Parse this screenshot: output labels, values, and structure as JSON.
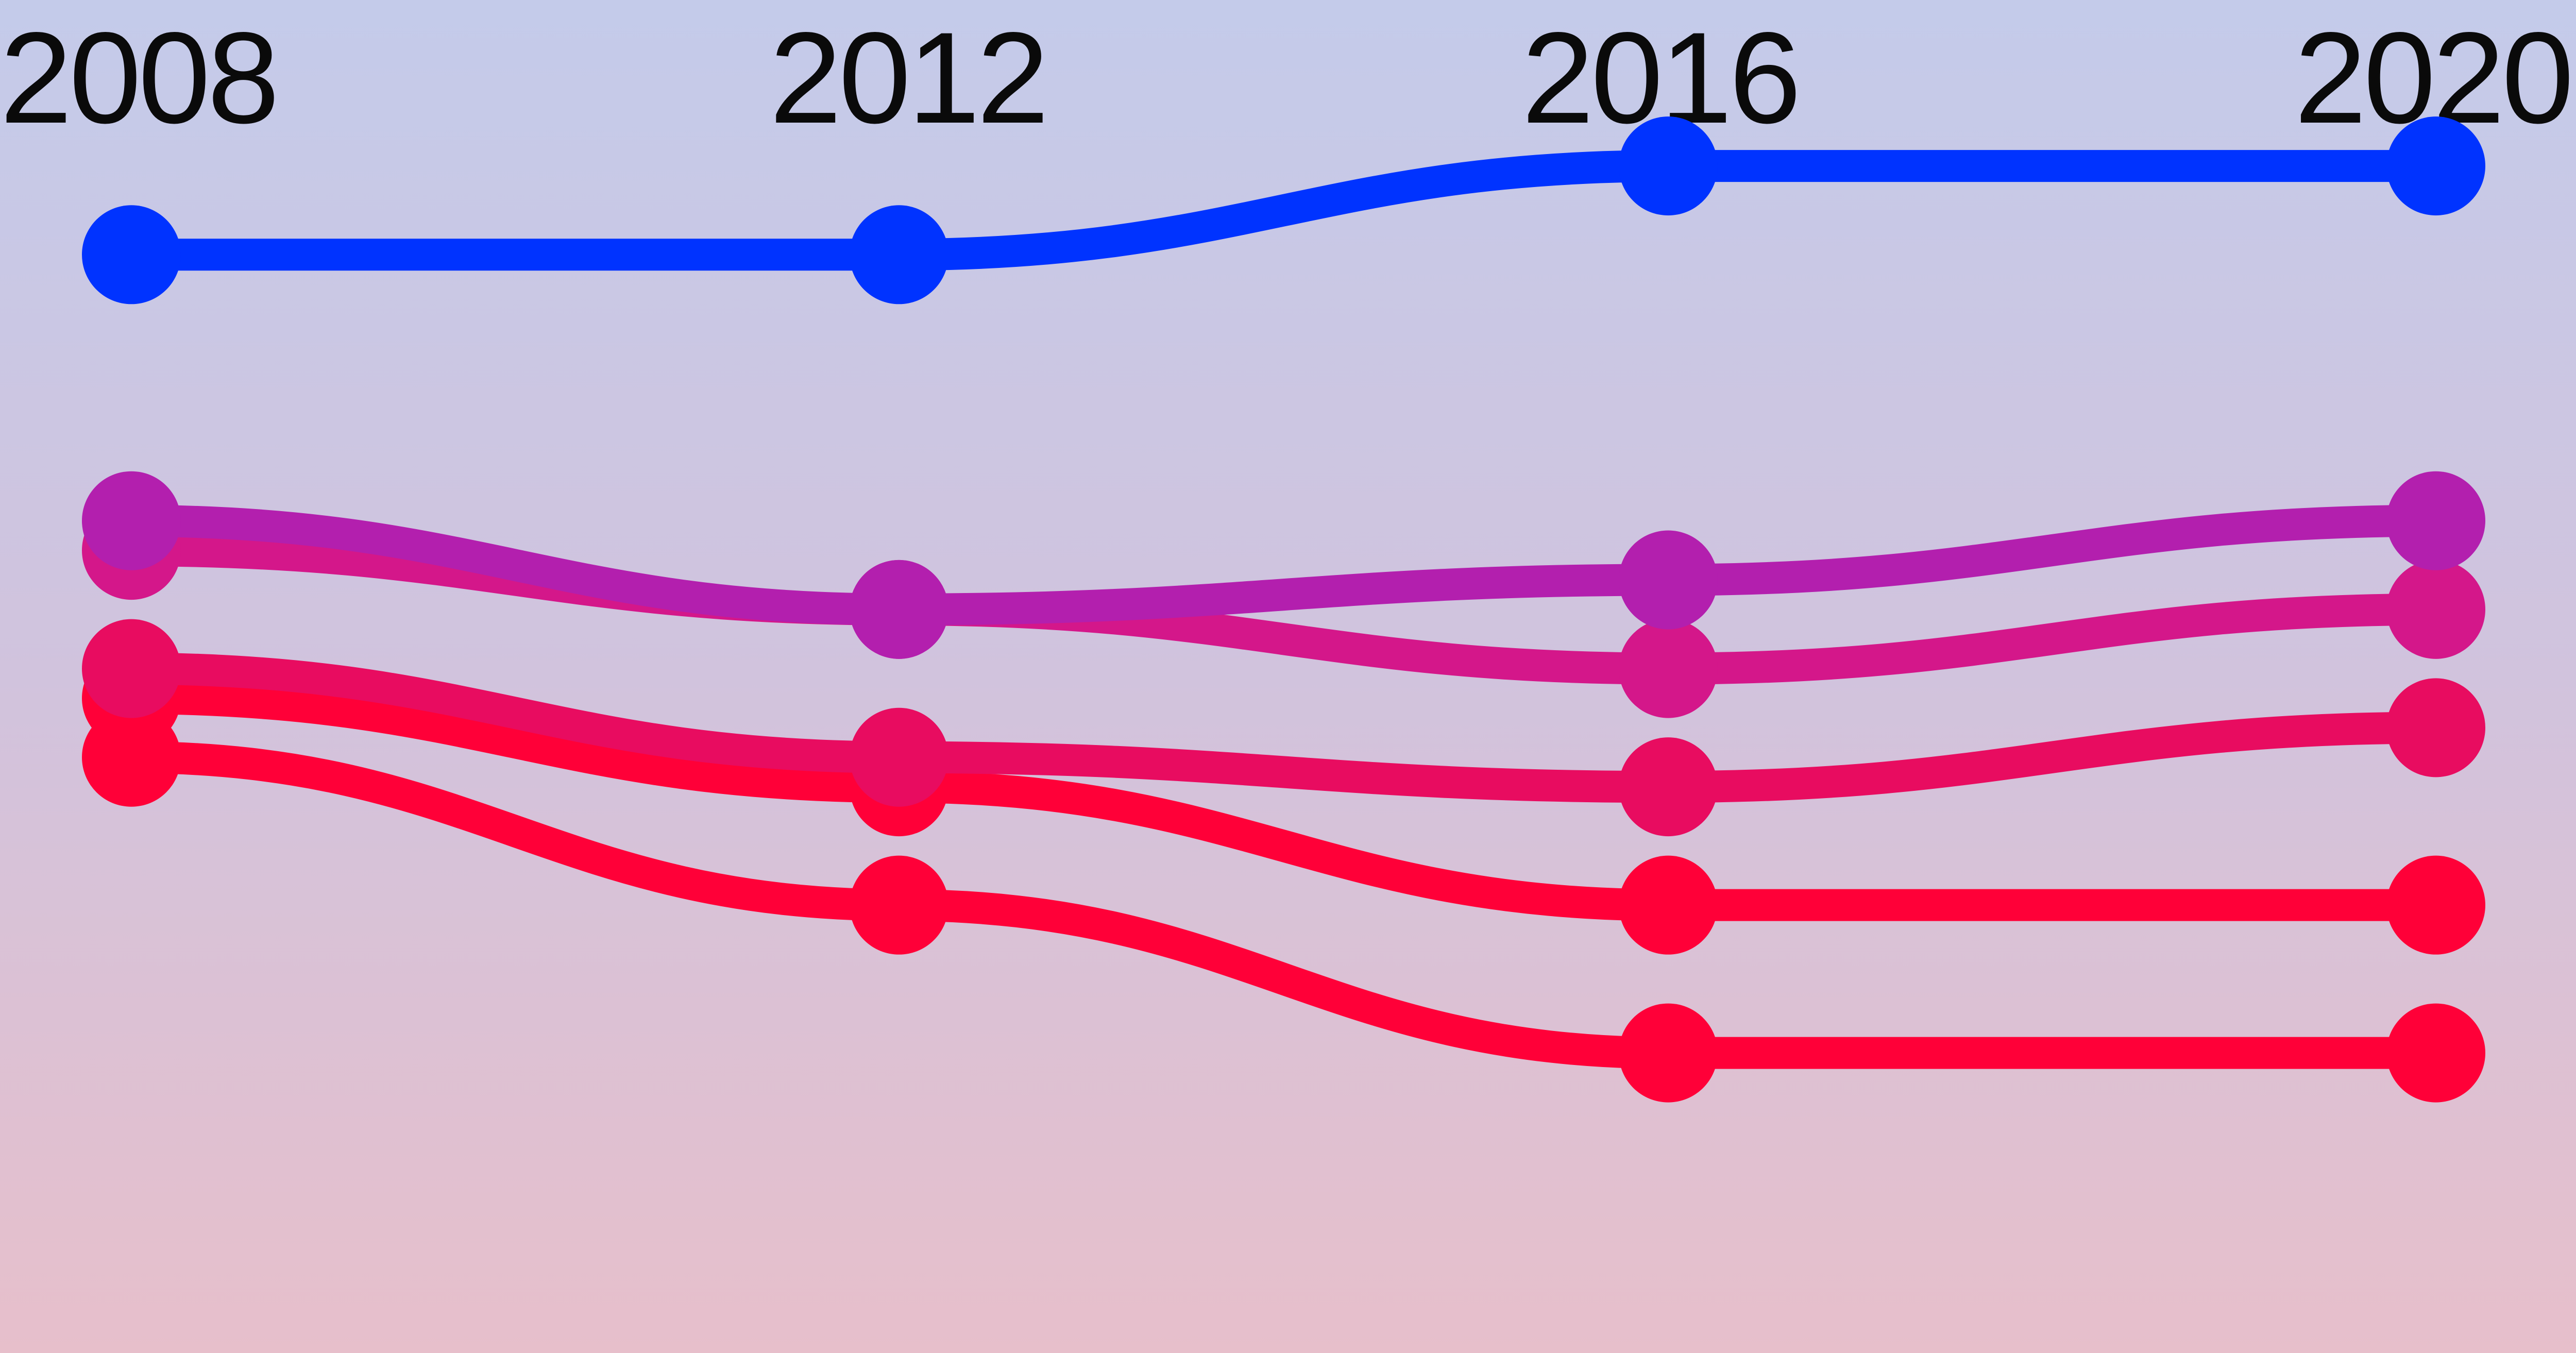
{
  "chart_data": {
    "type": "line",
    "x": [
      "2008",
      "2012",
      "2016",
      "2020"
    ],
    "series": [
      {
        "color": "#0033ff",
        "values": [
          96,
          96,
          99,
          99
        ]
      },
      {
        "color": "#b31fae",
        "values": [
          87,
          84,
          85,
          87
        ]
      },
      {
        "color": "#d4178a",
        "values": [
          86,
          84,
          82,
          84
        ]
      },
      {
        "color": "#e80c60",
        "values": [
          82,
          79,
          78,
          80
        ]
      },
      {
        "color": "#ff0038",
        "values": [
          81,
          78,
          74,
          74
        ]
      },
      {
        "color": "#ff0038",
        "values": [
          79,
          74,
          69,
          69
        ]
      }
    ],
    "ylim": [
      60,
      102
    ],
    "grid": false,
    "legend": "none"
  }
}
